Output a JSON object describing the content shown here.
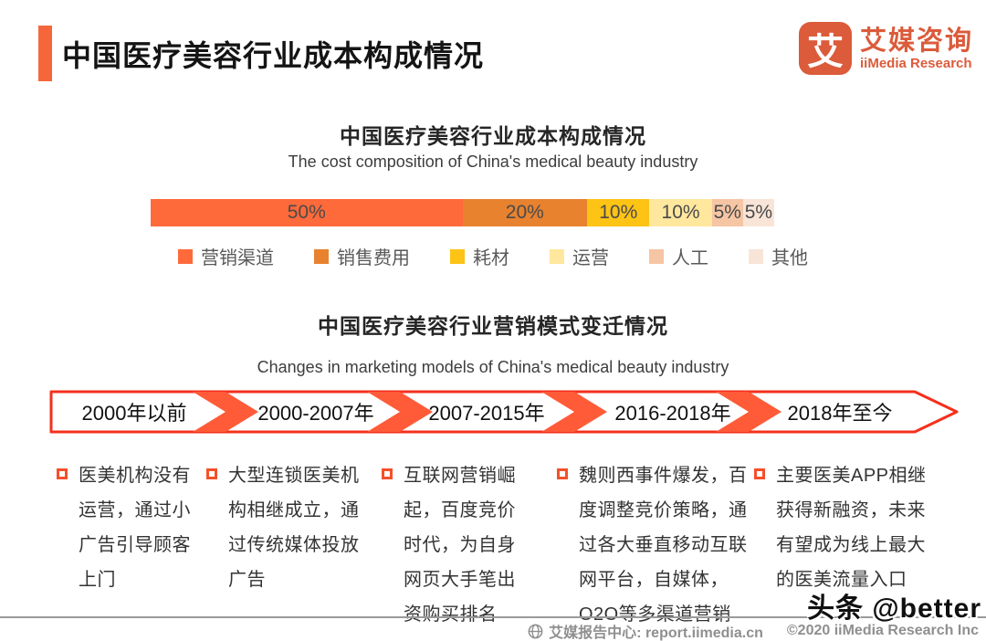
{
  "header": {
    "title": "中国医疗美容行业成本构成情况",
    "logo": {
      "icon_char": "艾",
      "name_cn": "艾媒咨询",
      "name_en": "iiMedia Research",
      "brand_color": "#DB5B3B"
    }
  },
  "chart_data": {
    "type": "bar",
    "variant": "horizontal-stacked",
    "title": "中国医疗美容行业成本构成情况",
    "subtitle": "The cost composition of China's medical beauty industry",
    "categories": [
      "营销渠道",
      "销售费用",
      "耗材",
      "运营",
      "人工",
      "其他"
    ],
    "values": [
      50,
      20,
      10,
      10,
      5,
      5
    ],
    "unit": "%",
    "legend_position": "bottom",
    "grid": false,
    "segments": [
      {
        "legend": "营销渠道",
        "value": 50,
        "label": "50%",
        "color": "#FF6A3B"
      },
      {
        "legend": "销售费用",
        "value": 20,
        "label": "20%",
        "color": "#E8822F"
      },
      {
        "legend": "耗材",
        "value": 10,
        "label": "10%",
        "color": "#FDC315"
      },
      {
        "legend": "运营",
        "value": 10,
        "label": "10%",
        "color": "#FFE79E"
      },
      {
        "legend": "人工",
        "value": 5,
        "label": "5%",
        "color": "#F5C5A4"
      },
      {
        "legend": "其他",
        "value": 5,
        "label": "5%",
        "color": "#F8E5D7"
      }
    ]
  },
  "timeline": {
    "title": "中国医疗美容行业营销模式变迁情况",
    "subtitle": "Changes in marketing models of China's medical beauty industry",
    "band_border_color": "#F5301C",
    "chevron_color": "#FF5B38",
    "periods": [
      {
        "label": "2000年以前",
        "description": "医美机构没有运营，通过小广告引导顾客上门"
      },
      {
        "label": "2000-2007年",
        "description": "大型连锁医美机构相继成立，通过传统媒体投放广告"
      },
      {
        "label": "2007-2015年",
        "description": "互联网营销崛起，百度竞价时代，为自身网页大手笔出资购买排名"
      },
      {
        "label": "2016-2018年",
        "description": "魏则西事件爆发，百度调整竞价策略，通过各大垂直移动互联网平台，自媒体，O2O等多渠道营销"
      },
      {
        "label": "2018年至今",
        "description": "主要医美APP相继获得新融资，未来有望成为线上最大的医美流量入口"
      }
    ]
  },
  "footer": {
    "center_label": "艾媒报告中心:  report.iimedia.cn",
    "copyright": "©2020  iiMedia Research  Inc"
  },
  "watermark": "头条 @better"
}
